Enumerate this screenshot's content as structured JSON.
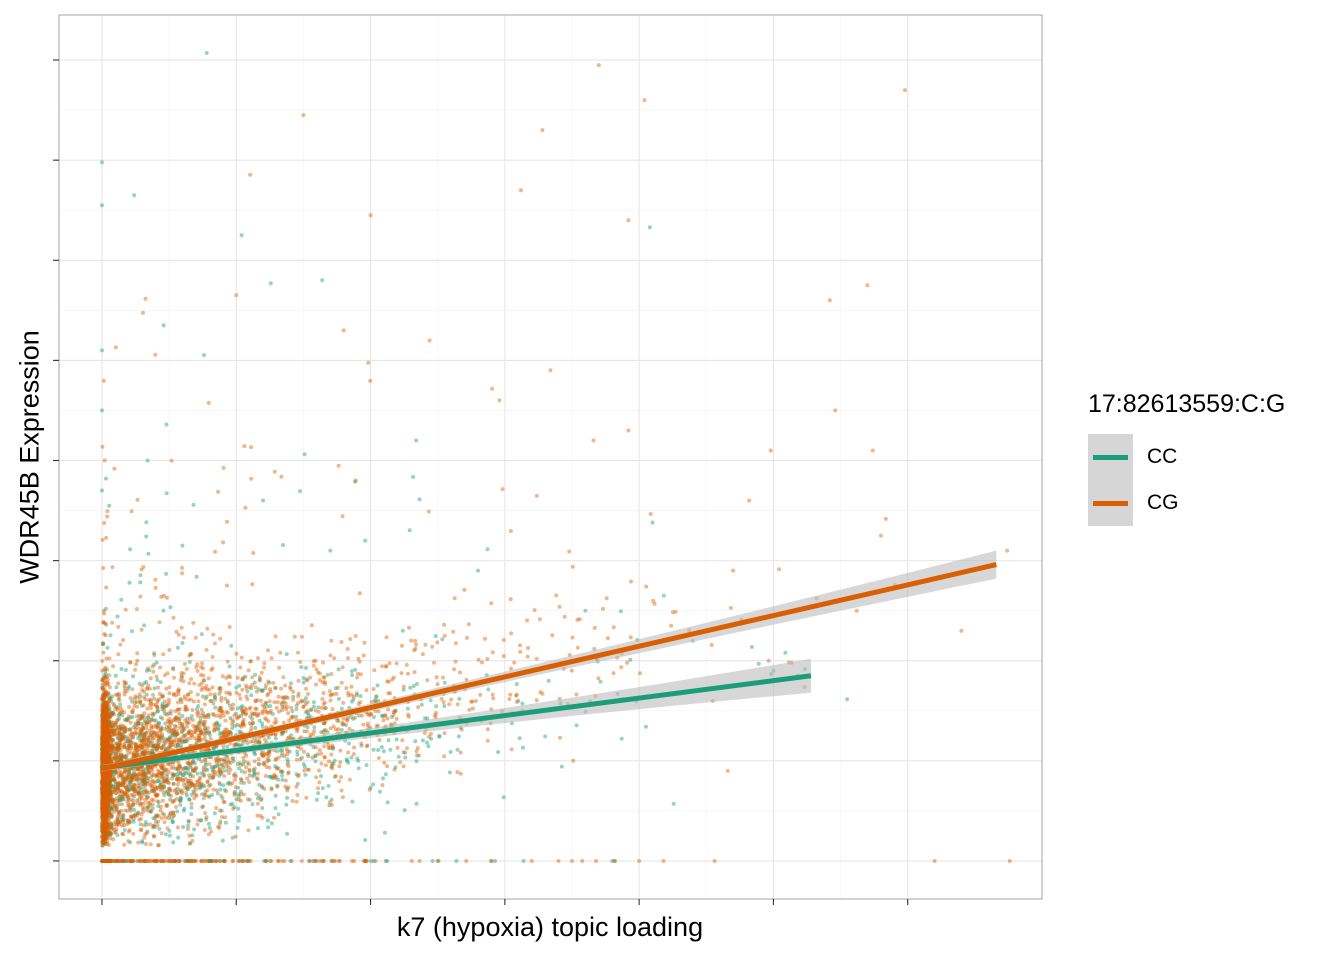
{
  "chart_data": {
    "type": "scatter",
    "title": "",
    "xlabel": "k7 (hypoxia) topic loading",
    "ylabel": "WDR45B Expression",
    "xlim": [
      -0.016,
      0.35
    ],
    "ylim": [
      -0.38,
      8.45
    ],
    "tick_labels_shown": false,
    "grid": true,
    "legend_placement": "right",
    "legend_title": "17:82613559:C:G",
    "series": [
      {
        "name": "CC",
        "color": "#1b9e77",
        "trend": {
          "x": [
            0.0,
            0.264
          ],
          "y": [
            0.93,
            1.85
          ],
          "ci_halfwidth_end": [
            0.03,
            0.17
          ]
        },
        "points": [
          [
            0.039,
            8.07
          ],
          [
            0.012,
            6.65
          ],
          [
            0.052,
            6.25
          ],
          [
            0.204,
            6.33
          ],
          [
            0.082,
            5.8
          ],
          [
            0.023,
            5.35
          ],
          [
            0.024,
            4.36
          ],
          [
            0.0,
            6.98
          ],
          [
            0.0,
            6.55
          ],
          [
            0.0,
            5.1
          ],
          [
            0.0,
            4.5
          ],
          [
            0.0,
            3.7
          ],
          [
            0.098,
            3.2
          ],
          [
            0.117,
            4.2
          ],
          [
            0.205,
            3.38
          ],
          [
            0.03,
            3.15
          ],
          [
            0.14,
            2.9
          ],
          [
            0.18,
            2.5
          ],
          [
            0.22,
            2.2
          ],
          [
            0.06,
            3.6
          ],
          [
            0.112,
            2.3
          ],
          [
            0.25,
            1.9
          ],
          [
            0.085,
            3.1
          ],
          [
            0.155,
            1.6
          ],
          [
            0.19,
            0.0
          ],
          [
            0.157,
            0.0
          ],
          [
            0.017,
            4.0
          ]
        ]
      },
      {
        "name": "CG",
        "color": "#d95f02",
        "trend": {
          "x": [
            0.0,
            0.333
          ],
          "y": [
            0.92,
            2.96
          ],
          "ci_halfwidth_end": [
            0.03,
            0.14
          ]
        },
        "points": [
          [
            0.185,
            7.95
          ],
          [
            0.202,
            7.6
          ],
          [
            0.164,
            7.3
          ],
          [
            0.075,
            7.45
          ],
          [
            0.1,
            6.45
          ],
          [
            0.156,
            6.7
          ],
          [
            0.196,
            6.4
          ],
          [
            0.299,
            7.7
          ],
          [
            0.285,
            5.75
          ],
          [
            0.271,
            5.6
          ],
          [
            0.273,
            4.5
          ],
          [
            0.167,
            4.9
          ],
          [
            0.183,
            4.2
          ],
          [
            0.196,
            4.3
          ],
          [
            0.249,
            4.1
          ],
          [
            0.287,
            4.1
          ],
          [
            0.29,
            3.25
          ],
          [
            0.241,
            3.6
          ],
          [
            0.235,
            2.9
          ],
          [
            0.259,
            1.85
          ],
          [
            0.281,
            2.5
          ],
          [
            0.32,
            2.3
          ],
          [
            0.337,
            3.1
          ],
          [
            0.233,
            0.9
          ],
          [
            0.31,
            0.0
          ],
          [
            0.338,
            0.0
          ],
          [
            0.2,
            0.0
          ],
          [
            0.175,
            0.0
          ],
          [
            0.148,
            4.6
          ],
          [
            0.122,
            5.2
          ],
          [
            0.09,
            5.3
          ],
          [
            0.05,
            5.65
          ]
        ]
      }
    ]
  }
}
